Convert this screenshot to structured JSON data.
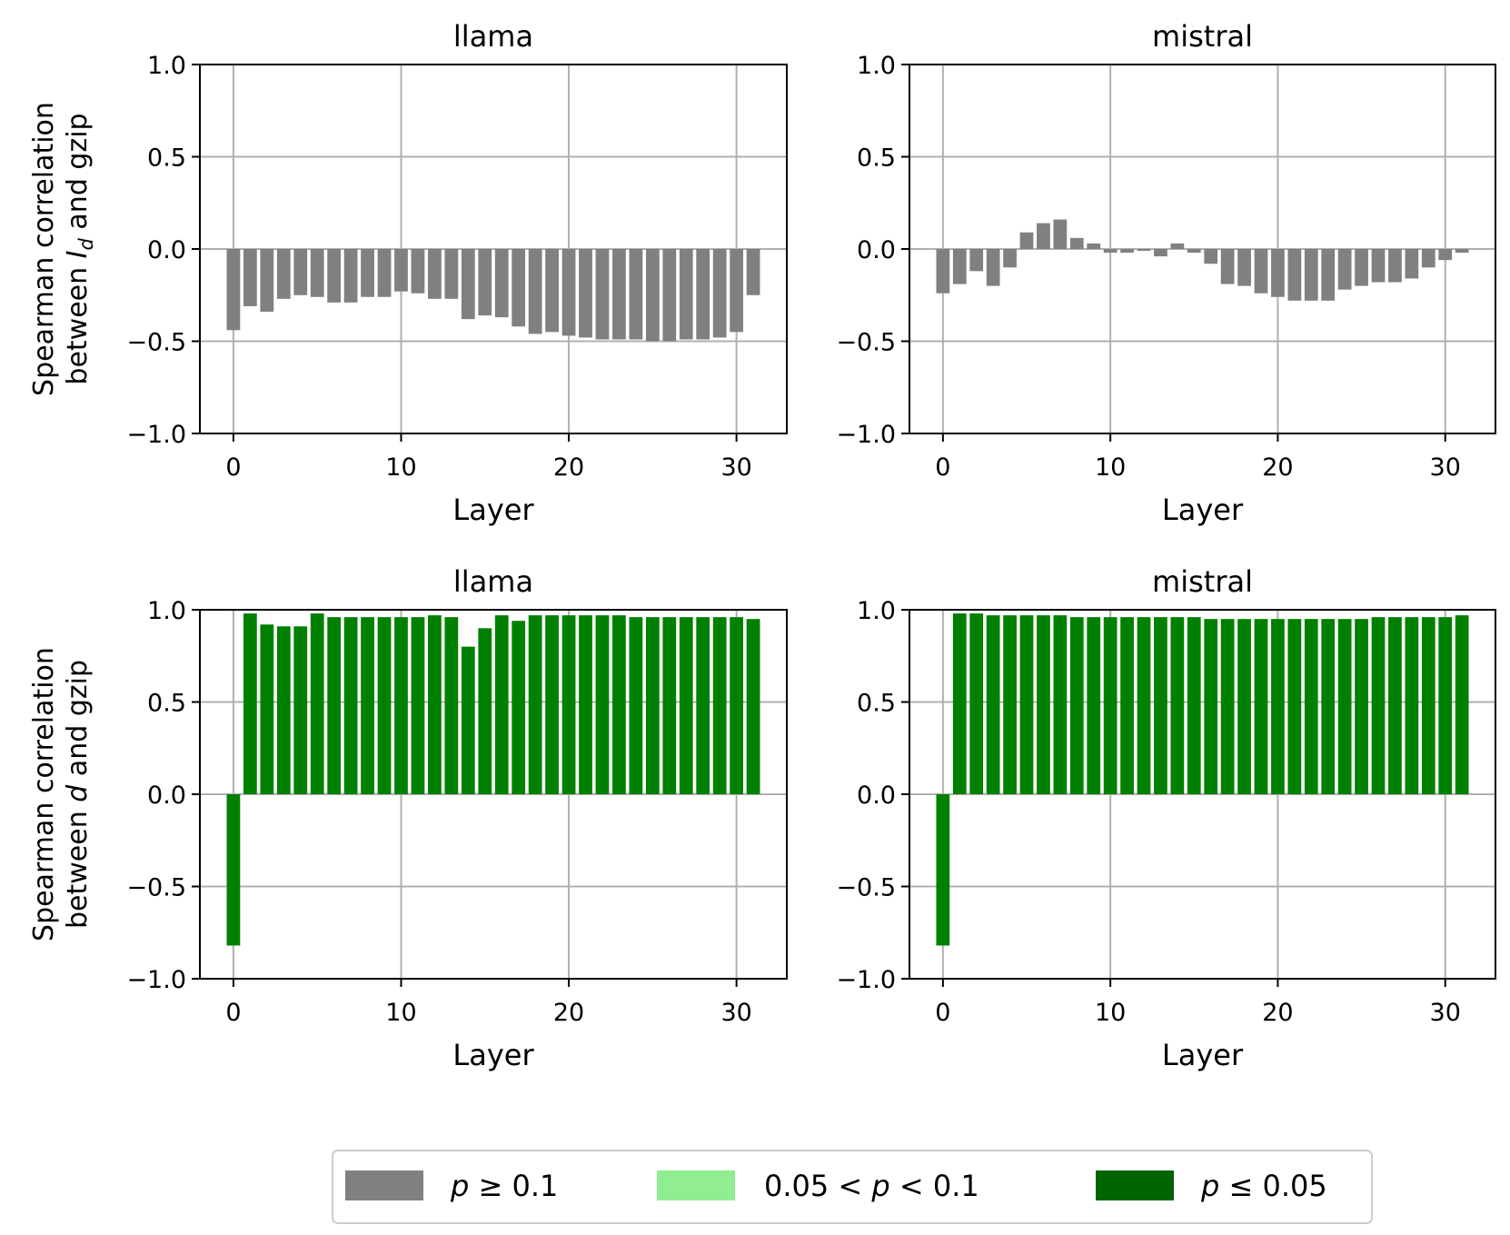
{
  "colors": {
    "not_significant": "#808080",
    "marginal": "#90ee90",
    "significant": "#006400",
    "bar_significant": "#008000",
    "grid": "#b0b0b0"
  },
  "chart_data": [
    {
      "type": "bar",
      "title": "llama",
      "xlabel": "Layer",
      "ylabel": [
        "Spearman correlation",
        "between ",
        "I",
        "d",
        " and gzip"
      ],
      "ylim": [
        -1.0,
        1.0
      ],
      "xlim": [
        -2,
        33
      ],
      "xticks": [
        "0",
        "10",
        "20",
        "30"
      ],
      "yticks": [
        "−1.0",
        "−0.5",
        "0.0",
        "0.5",
        "1.0"
      ],
      "grid": true,
      "x": [
        0,
        1,
        2,
        3,
        4,
        5,
        6,
        7,
        8,
        9,
        10,
        11,
        12,
        13,
        14,
        15,
        16,
        17,
        18,
        19,
        20,
        21,
        22,
        23,
        24,
        25,
        26,
        27,
        28,
        29,
        30,
        31
      ],
      "values": [
        -0.44,
        -0.31,
        -0.34,
        -0.27,
        -0.25,
        -0.26,
        -0.29,
        -0.29,
        -0.26,
        -0.26,
        -0.23,
        -0.24,
        -0.27,
        -0.27,
        -0.38,
        -0.36,
        -0.37,
        -0.42,
        -0.46,
        -0.45,
        -0.47,
        -0.48,
        -0.49,
        -0.49,
        -0.49,
        -0.5,
        -0.5,
        -0.49,
        -0.49,
        -0.48,
        -0.45,
        -0.25
      ],
      "significance": "p >= 0.1"
    },
    {
      "type": "bar",
      "title": "mistral",
      "xlabel": "Layer",
      "ylim": [
        -1.0,
        1.0
      ],
      "xlim": [
        -2,
        33
      ],
      "xticks": [
        "0",
        "10",
        "20",
        "30"
      ],
      "yticks": [
        "−1.0",
        "−0.5",
        "0.0",
        "0.5",
        "1.0"
      ],
      "grid": true,
      "x": [
        0,
        1,
        2,
        3,
        4,
        5,
        6,
        7,
        8,
        9,
        10,
        11,
        12,
        13,
        14,
        15,
        16,
        17,
        18,
        19,
        20,
        21,
        22,
        23,
        24,
        25,
        26,
        27,
        28,
        29,
        30,
        31
      ],
      "values": [
        -0.24,
        -0.19,
        -0.12,
        -0.2,
        -0.1,
        0.09,
        0.14,
        0.16,
        0.06,
        0.03,
        -0.02,
        -0.02,
        -0.01,
        -0.04,
        0.03,
        -0.02,
        -0.08,
        -0.19,
        -0.2,
        -0.24,
        -0.26,
        -0.28,
        -0.28,
        -0.28,
        -0.22,
        -0.2,
        -0.18,
        -0.18,
        -0.16,
        -0.1,
        -0.06,
        -0.02
      ],
      "significance": "p >= 0.1"
    },
    {
      "type": "bar",
      "title": "llama",
      "xlabel": "Layer",
      "ylabel": [
        "Spearman correlation",
        "between ",
        "d",
        "",
        " and gzip"
      ],
      "ylim": [
        -1.0,
        1.0
      ],
      "xlim": [
        -2,
        33
      ],
      "xticks": [
        "0",
        "10",
        "20",
        "30"
      ],
      "yticks": [
        "−1.0",
        "−0.5",
        "0.0",
        "0.5",
        "1.0"
      ],
      "grid": true,
      "x": [
        0,
        1,
        2,
        3,
        4,
        5,
        6,
        7,
        8,
        9,
        10,
        11,
        12,
        13,
        14,
        15,
        16,
        17,
        18,
        19,
        20,
        21,
        22,
        23,
        24,
        25,
        26,
        27,
        28,
        29,
        30,
        31
      ],
      "values": [
        -0.82,
        0.98,
        0.92,
        0.91,
        0.91,
        0.98,
        0.96,
        0.96,
        0.96,
        0.96,
        0.96,
        0.96,
        0.97,
        0.96,
        0.8,
        0.9,
        0.97,
        0.94,
        0.97,
        0.97,
        0.97,
        0.97,
        0.97,
        0.97,
        0.96,
        0.96,
        0.96,
        0.96,
        0.96,
        0.96,
        0.96,
        0.95
      ],
      "significance": "p <= 0.05"
    },
    {
      "type": "bar",
      "title": "mistral",
      "xlabel": "Layer",
      "ylim": [
        -1.0,
        1.0
      ],
      "xlim": [
        -2,
        33
      ],
      "xticks": [
        "0",
        "10",
        "20",
        "30"
      ],
      "yticks": [
        "−1.0",
        "−0.5",
        "0.0",
        "0.5",
        "1.0"
      ],
      "grid": true,
      "x": [
        0,
        1,
        2,
        3,
        4,
        5,
        6,
        7,
        8,
        9,
        10,
        11,
        12,
        13,
        14,
        15,
        16,
        17,
        18,
        19,
        20,
        21,
        22,
        23,
        24,
        25,
        26,
        27,
        28,
        29,
        30,
        31
      ],
      "values": [
        -0.82,
        0.98,
        0.98,
        0.97,
        0.97,
        0.97,
        0.97,
        0.97,
        0.96,
        0.96,
        0.96,
        0.96,
        0.96,
        0.96,
        0.96,
        0.96,
        0.95,
        0.95,
        0.95,
        0.95,
        0.95,
        0.95,
        0.95,
        0.95,
        0.95,
        0.95,
        0.96,
        0.96,
        0.96,
        0.96,
        0.96,
        0.97
      ],
      "significance": "p <= 0.05"
    }
  ],
  "legend": {
    "items": [
      {
        "prefix": "",
        "p": "p",
        "suffix": " ≥ 0.1",
        "color": "#808080"
      },
      {
        "prefix": "0.05 < ",
        "p": "p",
        "suffix": " < 0.1",
        "color": "#90ee90"
      },
      {
        "prefix": "",
        "p": "p",
        "suffix": " ≤ 0.05",
        "color": "#006400"
      }
    ]
  }
}
